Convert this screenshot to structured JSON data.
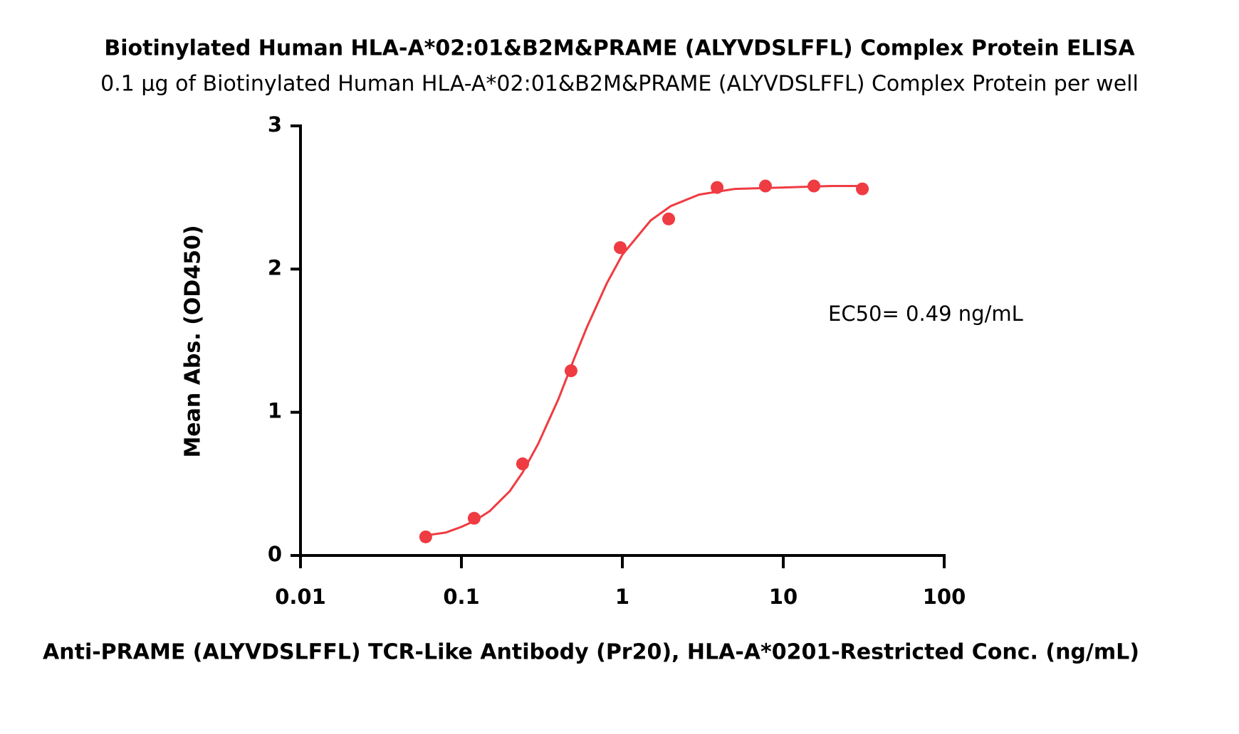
{
  "chart_data": {
    "type": "scatter",
    "title": "Biotinylated Human HLA-A*02:01&B2M&PRAME (ALYVDSLFFL) Complex Protein ELISA",
    "subtitle": "0.1 µg of Biotinylated Human HLA-A*02:01&B2M&PRAME (ALYVDSLFFL) Complex Protein per well",
    "xlabel": "Anti-PRAME (ALYVDSLFFL) TCR-Like Antibody (Pr20), HLA-A*0201-Restricted Conc. (ng/mL)",
    "ylabel": "Mean Abs. (OD450)",
    "annotation": "EC50= 0.49 ng/mL",
    "xscale": "log",
    "xlim": [
      0.01,
      100
    ],
    "xticks": [
      0.01,
      0.1,
      1,
      10,
      100
    ],
    "ylim": [
      0,
      3
    ],
    "yticks": [
      0,
      1,
      2,
      3
    ],
    "series": [
      {
        "mode": "markers",
        "color": "#ef3b42",
        "x": [
          0.06,
          0.12,
          0.24,
          0.48,
          0.97,
          1.94,
          3.88,
          7.75,
          15.5,
          31
        ],
        "values": [
          0.13,
          0.26,
          0.64,
          1.29,
          2.15,
          2.35,
          2.57,
          2.58,
          2.58,
          2.56
        ]
      },
      {
        "mode": "line",
        "color": "#ef3b42",
        "x": [
          0.06,
          0.08,
          0.1,
          0.12,
          0.15,
          0.2,
          0.24,
          0.3,
          0.4,
          0.5,
          0.6,
          0.8,
          1,
          1.5,
          2,
          3,
          5,
          10,
          20,
          31
        ],
        "values": [
          0.14,
          0.16,
          0.2,
          0.24,
          0.31,
          0.45,
          0.58,
          0.78,
          1.09,
          1.37,
          1.59,
          1.9,
          2.1,
          2.34,
          2.44,
          2.52,
          2.56,
          2.57,
          2.58,
          2.58
        ]
      }
    ]
  }
}
